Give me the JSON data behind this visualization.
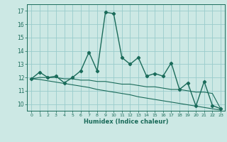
{
  "xlabel": "Humidex (Indice chaleur)",
  "bg_color": "#cce8e4",
  "grid_color": "#99cccc",
  "line_color": "#1a6b5a",
  "xlim": [
    -0.5,
    23.5
  ],
  "ylim": [
    9.5,
    17.5
  ],
  "yticks": [
    10,
    11,
    12,
    13,
    14,
    15,
    16,
    17
  ],
  "xticks": [
    0,
    1,
    2,
    3,
    4,
    5,
    6,
    7,
    8,
    9,
    10,
    11,
    12,
    13,
    14,
    15,
    16,
    17,
    18,
    19,
    20,
    21,
    22,
    23
  ],
  "series_main": [
    11.9,
    12.4,
    12.0,
    12.1,
    11.6,
    12.0,
    12.5,
    13.9,
    12.5,
    16.9,
    16.8,
    13.5,
    13.0,
    13.5,
    12.1,
    12.3,
    12.1,
    13.1,
    11.1,
    11.6,
    9.85,
    11.7,
    9.9,
    9.65
  ],
  "series_mid": [
    11.9,
    12.0,
    12.0,
    12.0,
    11.9,
    11.9,
    11.8,
    11.8,
    11.7,
    11.7,
    11.6,
    11.5,
    11.5,
    11.4,
    11.3,
    11.3,
    11.2,
    11.1,
    11.1,
    11.0,
    10.9,
    10.9,
    10.8,
    9.65
  ],
  "series_low": [
    11.9,
    11.85,
    11.75,
    11.65,
    11.55,
    11.45,
    11.35,
    11.25,
    11.1,
    11.0,
    10.9,
    10.8,
    10.7,
    10.55,
    10.45,
    10.35,
    10.25,
    10.15,
    10.05,
    9.95,
    9.85,
    9.75,
    9.65,
    9.55
  ]
}
